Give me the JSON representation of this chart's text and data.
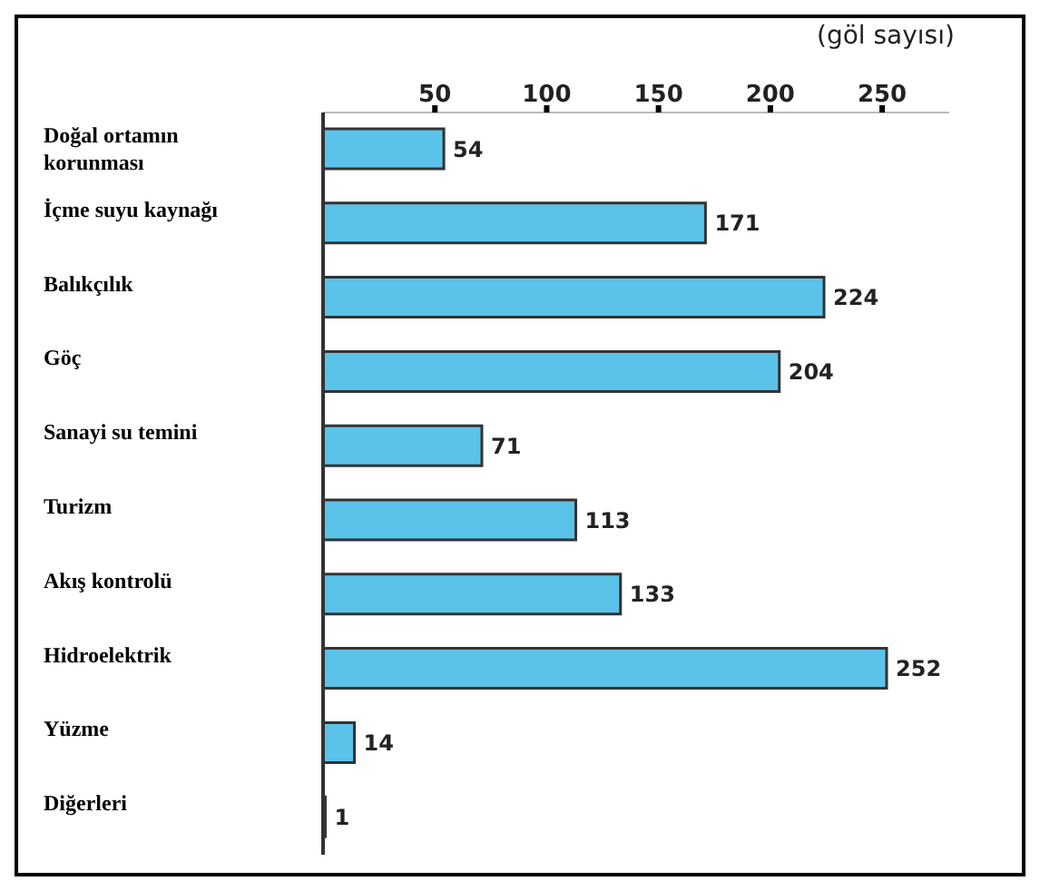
{
  "chart_data": {
    "type": "bar",
    "orientation": "horizontal",
    "xlabel": "(göl sayısı)",
    "categories": [
      "Doğal ortamın korunması",
      "İçme suyu kaynağı",
      "Balıkçılık",
      "Göç",
      "Sanayi su temini",
      "Turizm",
      "Akış kontrolü",
      "Hidroelektrik",
      "Yüzme",
      "Diğerleri"
    ],
    "values": [
      54,
      171,
      224,
      204,
      71,
      113,
      133,
      252,
      14,
      1
    ],
    "color": "#5bc3ea",
    "xlim": [
      0,
      280
    ],
    "xticks": [
      50,
      100,
      150,
      200,
      250
    ],
    "data_labels": true,
    "grid": false,
    "legend": false
  }
}
